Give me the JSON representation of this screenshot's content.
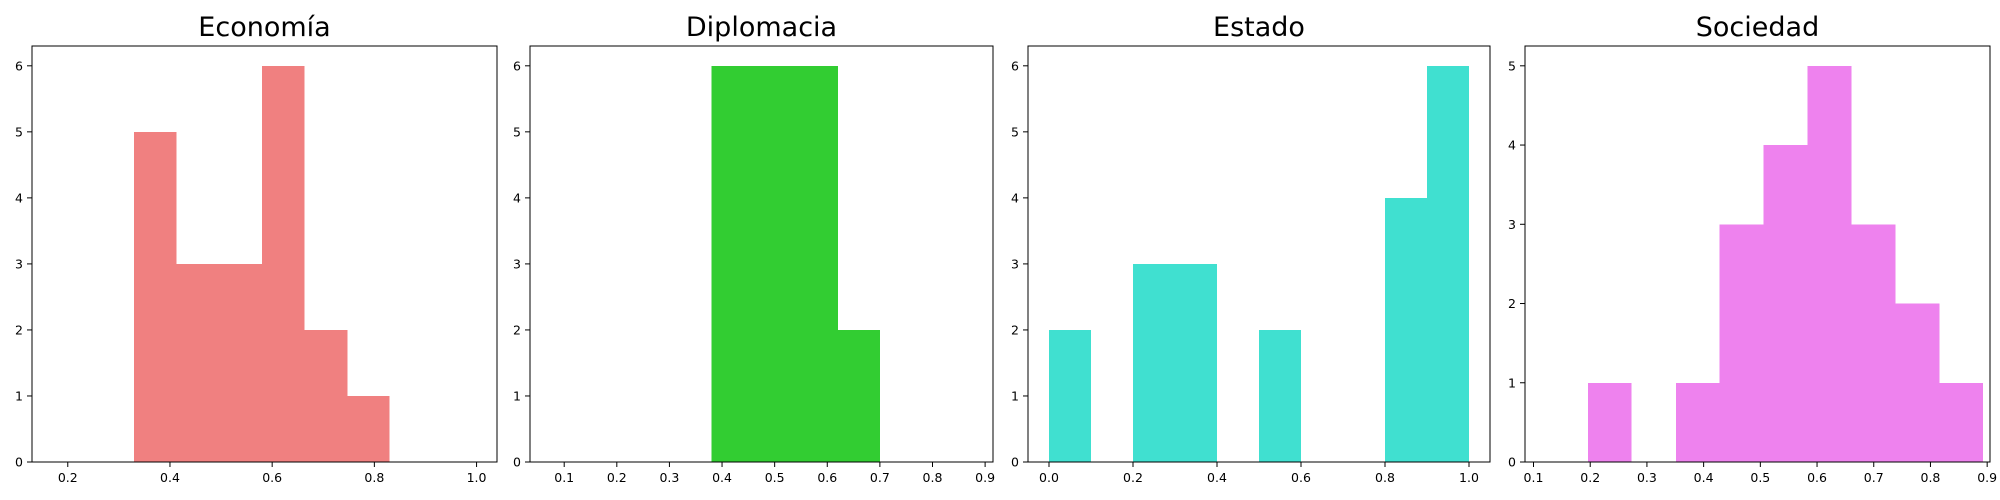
{
  "chart_data": [
    {
      "type": "histogram",
      "title": "Economía",
      "color": "#f08080",
      "xlim": [
        0.13,
        1.04
      ],
      "ylim": [
        0,
        6.3
      ],
      "xticks": [
        0.2,
        0.4,
        0.6,
        0.8,
        1.0
      ],
      "xtick_labels": [
        "0.2",
        "0.4",
        "0.6",
        "0.8",
        "1.0"
      ],
      "yticks": [
        0,
        1,
        2,
        3,
        4,
        5,
        6
      ],
      "ytick_labels": [
        "0",
        "1",
        "2",
        "3",
        "4",
        "5",
        "6"
      ],
      "bins": [
        {
          "x0": 0.33,
          "x1": 0.413,
          "count": 5
        },
        {
          "x0": 0.413,
          "x1": 0.497,
          "count": 3
        },
        {
          "x0": 0.497,
          "x1": 0.58,
          "count": 3
        },
        {
          "x0": 0.58,
          "x1": 0.663,
          "count": 6
        },
        {
          "x0": 0.663,
          "x1": 0.747,
          "count": 2
        },
        {
          "x0": 0.747,
          "x1": 0.83,
          "count": 1
        }
      ]
    },
    {
      "type": "histogram",
      "title": "Diplomacia",
      "color": "#32cd32",
      "xlim": [
        0.035,
        0.915
      ],
      "ylim": [
        0,
        6.3
      ],
      "xticks": [
        0.1,
        0.2,
        0.3,
        0.4,
        0.5,
        0.6,
        0.7,
        0.8,
        0.9
      ],
      "xtick_labels": [
        "0.1",
        "0.2",
        "0.3",
        "0.4",
        "0.5",
        "0.6",
        "0.7",
        "0.8",
        "0.9"
      ],
      "yticks": [
        0,
        1,
        2,
        3,
        4,
        5,
        6
      ],
      "ytick_labels": [
        "0",
        "1",
        "2",
        "3",
        "4",
        "5",
        "6"
      ],
      "bins": [
        {
          "x0": 0.38,
          "x1": 0.62,
          "count": 6
        },
        {
          "x0": 0.62,
          "x1": 0.7,
          "count": 2
        }
      ]
    },
    {
      "type": "histogram",
      "title": "Estado",
      "color": "#40e0d0",
      "xlim": [
        -0.05,
        1.05
      ],
      "ylim": [
        0,
        6.3
      ],
      "xticks": [
        0.0,
        0.2,
        0.4,
        0.6,
        0.8,
        1.0
      ],
      "xtick_labels": [
        "0.0",
        "0.2",
        "0.4",
        "0.6",
        "0.8",
        "1.0"
      ],
      "yticks": [
        0,
        1,
        2,
        3,
        4,
        5,
        6
      ],
      "ytick_labels": [
        "0",
        "1",
        "2",
        "3",
        "4",
        "5",
        "6"
      ],
      "bins": [
        {
          "x0": 0.0,
          "x1": 0.1,
          "count": 2
        },
        {
          "x0": 0.2,
          "x1": 0.4,
          "count": 3
        },
        {
          "x0": 0.5,
          "x1": 0.6,
          "count": 2
        },
        {
          "x0": 0.8,
          "x1": 0.9,
          "count": 4
        },
        {
          "x0": 0.9,
          "x1": 1.0,
          "count": 6
        }
      ]
    },
    {
      "type": "histogram",
      "title": "Sociedad",
      "color": "#ee82ee",
      "xlim": [
        0.085,
        0.905
      ],
      "ylim": [
        0,
        5.25
      ],
      "xticks": [
        0.1,
        0.2,
        0.3,
        0.4,
        0.5,
        0.6,
        0.7,
        0.8,
        0.9
      ],
      "xtick_labels": [
        "0.1",
        "0.2",
        "0.3",
        "0.4",
        "0.5",
        "0.6",
        "0.7",
        "0.8",
        "0.9"
      ],
      "yticks": [
        0,
        1,
        2,
        3,
        4,
        5
      ],
      "ytick_labels": [
        "0",
        "1",
        "2",
        "3",
        "4",
        "5"
      ],
      "bins": [
        {
          "x0": 0.196,
          "x1": 0.273,
          "count": 1
        },
        {
          "x0": 0.351,
          "x1": 0.428,
          "count": 1
        },
        {
          "x0": 0.428,
          "x1": 0.506,
          "count": 3
        },
        {
          "x0": 0.506,
          "x1": 0.583,
          "count": 4
        },
        {
          "x0": 0.583,
          "x1": 0.661,
          "count": 5
        },
        {
          "x0": 0.661,
          "x1": 0.738,
          "count": 3
        },
        {
          "x0": 0.738,
          "x1": 0.816,
          "count": 2
        },
        {
          "x0": 0.816,
          "x1": 0.893,
          "count": 1
        }
      ]
    }
  ]
}
